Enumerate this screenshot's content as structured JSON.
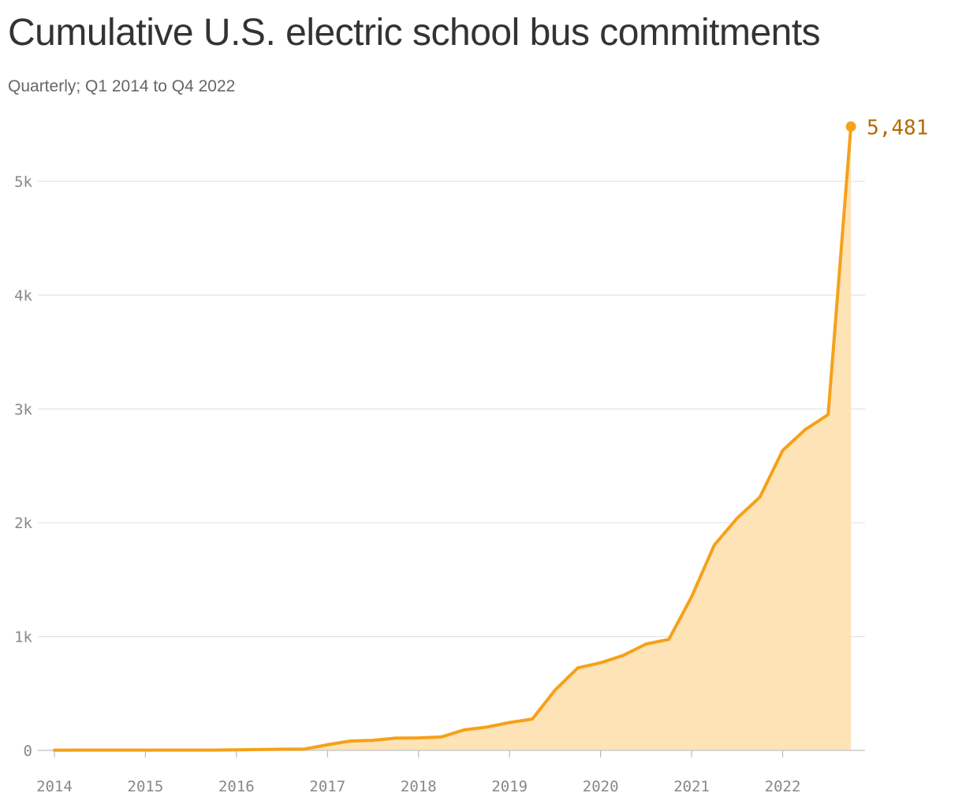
{
  "header": {
    "title": "Cumulative U.S. electric school bus commitments",
    "subtitle": "Quarterly; Q1 2014 to Q4 2022"
  },
  "chart_data": {
    "type": "area",
    "title": "Cumulative U.S. electric school bus commitments",
    "subtitle": "Quarterly; Q1 2014 to Q4 2022",
    "xlabel": "",
    "ylabel": "",
    "x": [
      "Q1 2014",
      "Q2 2014",
      "Q3 2014",
      "Q4 2014",
      "Q1 2015",
      "Q2 2015",
      "Q3 2015",
      "Q4 2015",
      "Q1 2016",
      "Q2 2016",
      "Q3 2016",
      "Q4 2016",
      "Q1 2017",
      "Q2 2017",
      "Q3 2017",
      "Q4 2017",
      "Q1 2018",
      "Q2 2018",
      "Q3 2018",
      "Q4 2018",
      "Q1 2019",
      "Q2 2019",
      "Q3 2019",
      "Q4 2019",
      "Q1 2020",
      "Q2 2020",
      "Q3 2020",
      "Q4 2020",
      "Q1 2021",
      "Q2 2021",
      "Q3 2021",
      "Q4 2021",
      "Q1 2022",
      "Q2 2022",
      "Q3 2022",
      "Q4 2022"
    ],
    "series": [
      {
        "values": [
          2,
          3,
          3,
          3,
          3,
          3,
          3,
          3,
          5,
          8,
          10,
          12,
          50,
          82,
          88,
          108,
          110,
          118,
          180,
          205,
          245,
          275,
          530,
          725,
          770,
          835,
          935,
          975,
          1350,
          1805,
          2040,
          2225,
          2635,
          2820,
          2950,
          5481
        ]
      }
    ],
    "x_ticks": [
      "2014",
      "2015",
      "2016",
      "2017",
      "2018",
      "2019",
      "2020",
      "2021",
      "2022"
    ],
    "y_ticks": [
      {
        "value": 0,
        "label": "0"
      },
      {
        "value": 1000,
        "label": "1k"
      },
      {
        "value": 2000,
        "label": "2k"
      },
      {
        "value": 3000,
        "label": "3k"
      },
      {
        "value": 4000,
        "label": "4k"
      },
      {
        "value": 5000,
        "label": "5k"
      }
    ],
    "ylim": [
      0,
      5481
    ],
    "grid": true,
    "end_label": "5,481",
    "colors": {
      "line": "#f5a11a",
      "area": "#fde3b5",
      "end_label": "#b36b00",
      "grid": "#e3e3e3"
    }
  }
}
